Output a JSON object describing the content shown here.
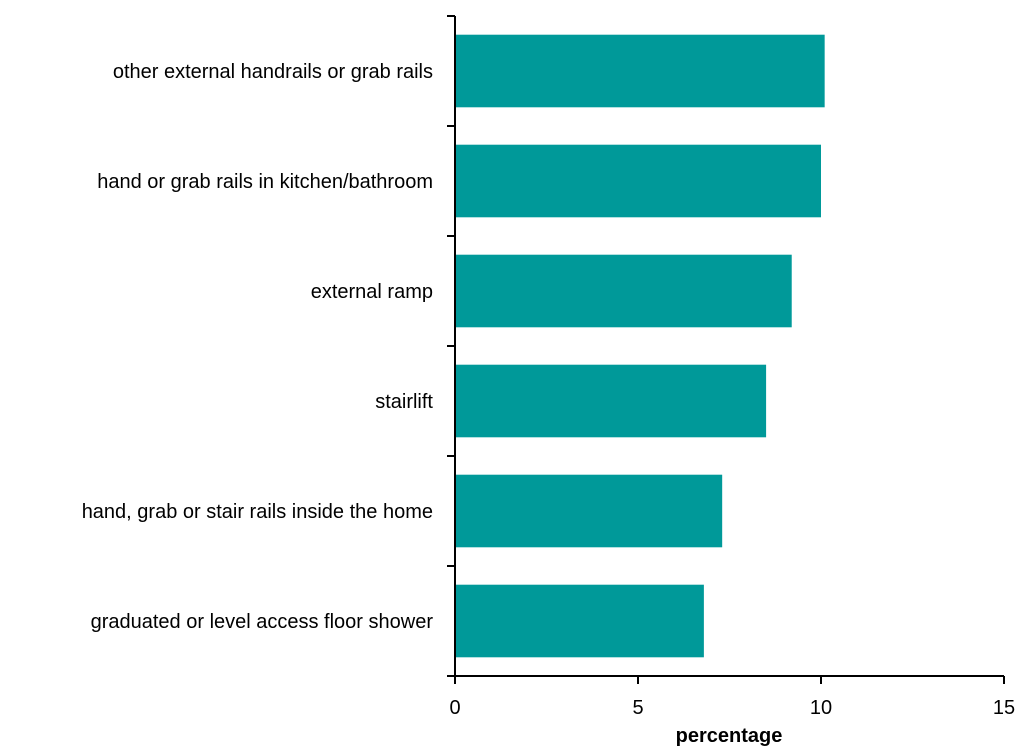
{
  "chart_data": {
    "type": "bar",
    "orientation": "horizontal",
    "categories": [
      "other external handrails or grab rails",
      "hand or grab rails in kitchen/bathroom",
      "external ramp",
      "stairlift",
      "hand, grab or stair rails inside the home",
      "graduated or level access floor shower"
    ],
    "values": [
      10.1,
      10.0,
      9.2,
      8.5,
      7.3,
      6.8
    ],
    "xlabel": "percentage",
    "xlim": [
      0,
      15
    ],
    "xticks": [
      0,
      5,
      10,
      15
    ],
    "grid": false,
    "bar_color": "#009999"
  }
}
